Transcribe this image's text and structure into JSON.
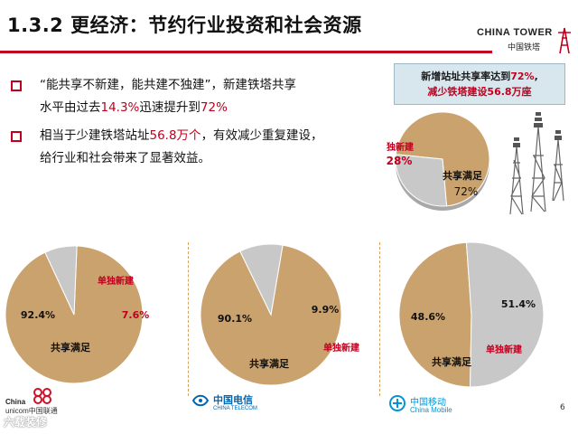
{
  "header": {
    "title": "1.3.2 更经济：节约行业投资和社会资源",
    "logo_en": "CHINA TOWER",
    "logo_cn": "中国铁塔"
  },
  "bullets": [
    {
      "pre": "“能共享不新建，能共建不独建”，新建铁塔共享",
      "line2_pre": "水平由过去",
      "hl1": "14.3%",
      "mid": "迅速提升到",
      "hl2": "72%"
    },
    {
      "pre": "相当于少建铁塔站址",
      "hl1": "56.8万个",
      "post": "，有效减少重复建设，",
      "line2": "给行业和社会带来了显著效益。"
    }
  ],
  "stat_box": {
    "line1_pre": "新增站址共享率达到",
    "line1_hl": "72%",
    "line1_post": ",",
    "line2": "减少铁塔建设56.8万座"
  },
  "colors": {
    "shared": "#c9a26e",
    "single": "#c8c8c8",
    "accent": "#c0001e"
  },
  "chart_data": [
    {
      "type": "pie",
      "title": "",
      "series": [
        {
          "name": "共享满足",
          "value": 72,
          "label": "72%"
        },
        {
          "name": "单独新建",
          "value": 28,
          "label": "28%"
        }
      ]
    },
    {
      "type": "pie",
      "title": "",
      "series": [
        {
          "name": "共享满足",
          "value": 92.4,
          "label": "92.4%"
        },
        {
          "name": "单独新建",
          "value": 7.6,
          "label": "7.6%"
        }
      ]
    },
    {
      "type": "pie",
      "title": "",
      "series": [
        {
          "name": "共享满足",
          "value": 90.1,
          "label": "90.1%"
        },
        {
          "name": "单独新建",
          "value": 9.9,
          "label": "9.9%"
        }
      ]
    },
    {
      "type": "pie",
      "title": "",
      "series": [
        {
          "name": "共享满足",
          "value": 48.6,
          "label": "48.6%"
        },
        {
          "name": "单独新建",
          "value": 51.4,
          "label": "51.4%"
        }
      ]
    }
  ],
  "operators": [
    {
      "name_en1": "China",
      "name_en2": "unicom中国联通",
      "icon": "china-unicom-logo-icon"
    },
    {
      "name_cn": "中国电信",
      "name_en": "CHINA TELECOM",
      "icon": "china-telecom-logo-icon"
    },
    {
      "name_cn": "中国移动",
      "name_en": "China Mobile",
      "icon": "china-mobile-logo-icon"
    }
  ],
  "page_number": "6",
  "watermark": "六载装修"
}
